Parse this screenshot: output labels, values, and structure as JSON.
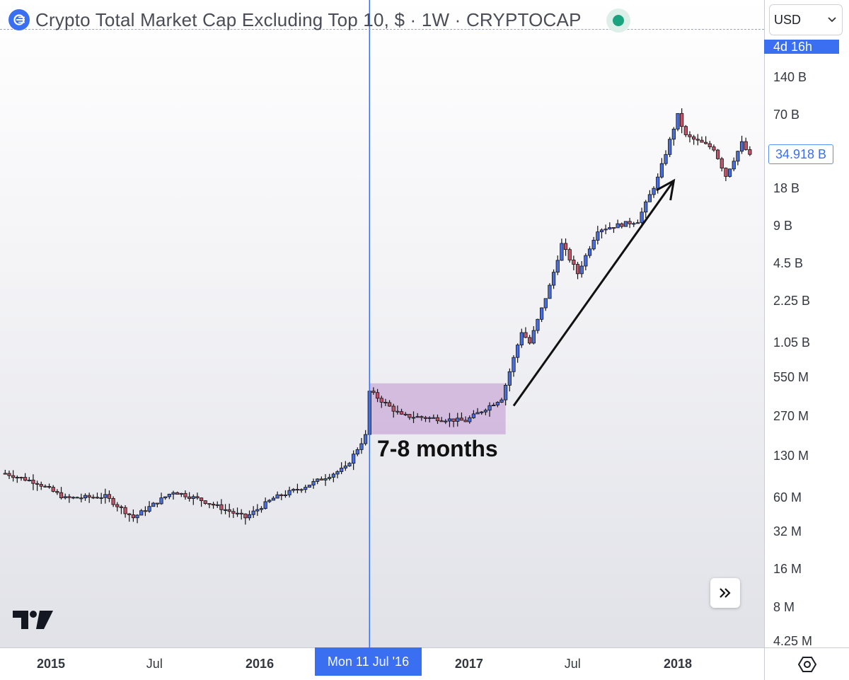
{
  "header": {
    "title": "Crypto Total Market Cap Excluding Top 10, $ · 1W · CRYPTOCAP",
    "brand_icon": "crypto-cap-icon",
    "status_color": "#1aa37f"
  },
  "toolbar": {
    "currency": "USD",
    "countdown": "4d 16h"
  },
  "colors": {
    "accent": "#3b6ff2",
    "up_candle": "#4a6fdc",
    "down_candle": "#c2546a",
    "highlight_box": "#cfb3dc"
  },
  "chart_data": {
    "type": "candlestick",
    "title": "Crypto Total Market Cap Excluding Top 10, $ · 1W · CRYPTOCAP",
    "timeframe": "1W",
    "y_scale": "log",
    "y_tick_labels": [
      "140 B",
      "70 B",
      "18 B",
      "9 B",
      "4.5 B",
      "2.25 B",
      "1.05 B",
      "550 M",
      "270 M",
      "130 M",
      "60 M",
      "32 M",
      "16 M",
      "8 M",
      "4.25 M"
    ],
    "y_tick_values": [
      140000000000.0,
      70000000000.0,
      18000000000.0,
      9000000000.0,
      4500000000.0,
      2250000000.0,
      1050000000.0,
      550000000.0,
      270000000.0,
      130000000.0,
      60000000.0,
      32000000.0,
      16000000.0,
      8000000.0,
      4250000.0
    ],
    "x_tick_labels": [
      "2015",
      "Jul",
      "2016",
      "Jul",
      "2017",
      "Jul",
      "2018"
    ],
    "x_tick_dates": [
      "2015-01-01",
      "2015-07-01",
      "2016-01-01",
      "2016-07-01",
      "2017-01-01",
      "2017-07-01",
      "2018-01-01"
    ],
    "x_range": [
      "2014-10-13",
      "2018-05-07"
    ],
    "current_price_label": "34.918 B",
    "current_price": 34918000000.0,
    "crosshair_date_label": "Mon 11 Jul '16",
    "crosshair_date": "2016-07-11",
    "weekly_close_anchors": [
      [
        "2014-10-13",
        95000000.0
      ],
      [
        "2014-12-08",
        80000000.0
      ],
      [
        "2015-01-26",
        60000000.0
      ],
      [
        "2015-04-06",
        62000000.0
      ],
      [
        "2015-05-25",
        42000000.0
      ],
      [
        "2015-08-03",
        68000000.0
      ],
      [
        "2015-09-21",
        58000000.0
      ],
      [
        "2015-12-07",
        42000000.0
      ],
      [
        "2016-01-25",
        60000000.0
      ],
      [
        "2016-03-21",
        75000000.0
      ],
      [
        "2016-05-30",
        105000000.0
      ],
      [
        "2016-07-04",
        190000000.0
      ],
      [
        "2016-07-11",
        430000000.0
      ],
      [
        "2016-09-05",
        275000000.0
      ],
      [
        "2016-12-26",
        250000000.0
      ],
      [
        "2017-02-27",
        380000000.0
      ],
      [
        "2017-04-03",
        1300000000.0
      ],
      [
        "2017-04-17",
        1050000000.0
      ],
      [
        "2017-05-22",
        3000000000.0
      ],
      [
        "2017-06-12",
        6500000000.0
      ],
      [
        "2017-07-10",
        3800000000.0
      ],
      [
        "2017-08-14",
        8500000000.0
      ],
      [
        "2017-10-23",
        10000000000.0
      ],
      [
        "2017-11-27",
        22000000000.0
      ],
      [
        "2018-01-01",
        70000000000.0
      ],
      [
        "2018-01-15",
        48000000000.0
      ],
      [
        "2018-03-05",
        38000000000.0
      ],
      [
        "2018-03-26",
        23000000000.0
      ],
      [
        "2018-04-23",
        42000000000.0
      ],
      [
        "2018-05-07",
        33000000000.0
      ]
    ],
    "annotations": {
      "box_label": "7-8 months",
      "box_start": "2016-07-11",
      "box_end": "2017-03-06",
      "box_high": 500000000.0,
      "box_low": 195000000.0,
      "arrow_from": [
        "2017-03-20",
        330000000.0
      ],
      "arrow_to": [
        "2017-12-25",
        21000000000.0
      ]
    }
  },
  "scroll_button": "double-chevron-right-icon",
  "logo": "tradingview-logo",
  "settings": "gear-icon"
}
